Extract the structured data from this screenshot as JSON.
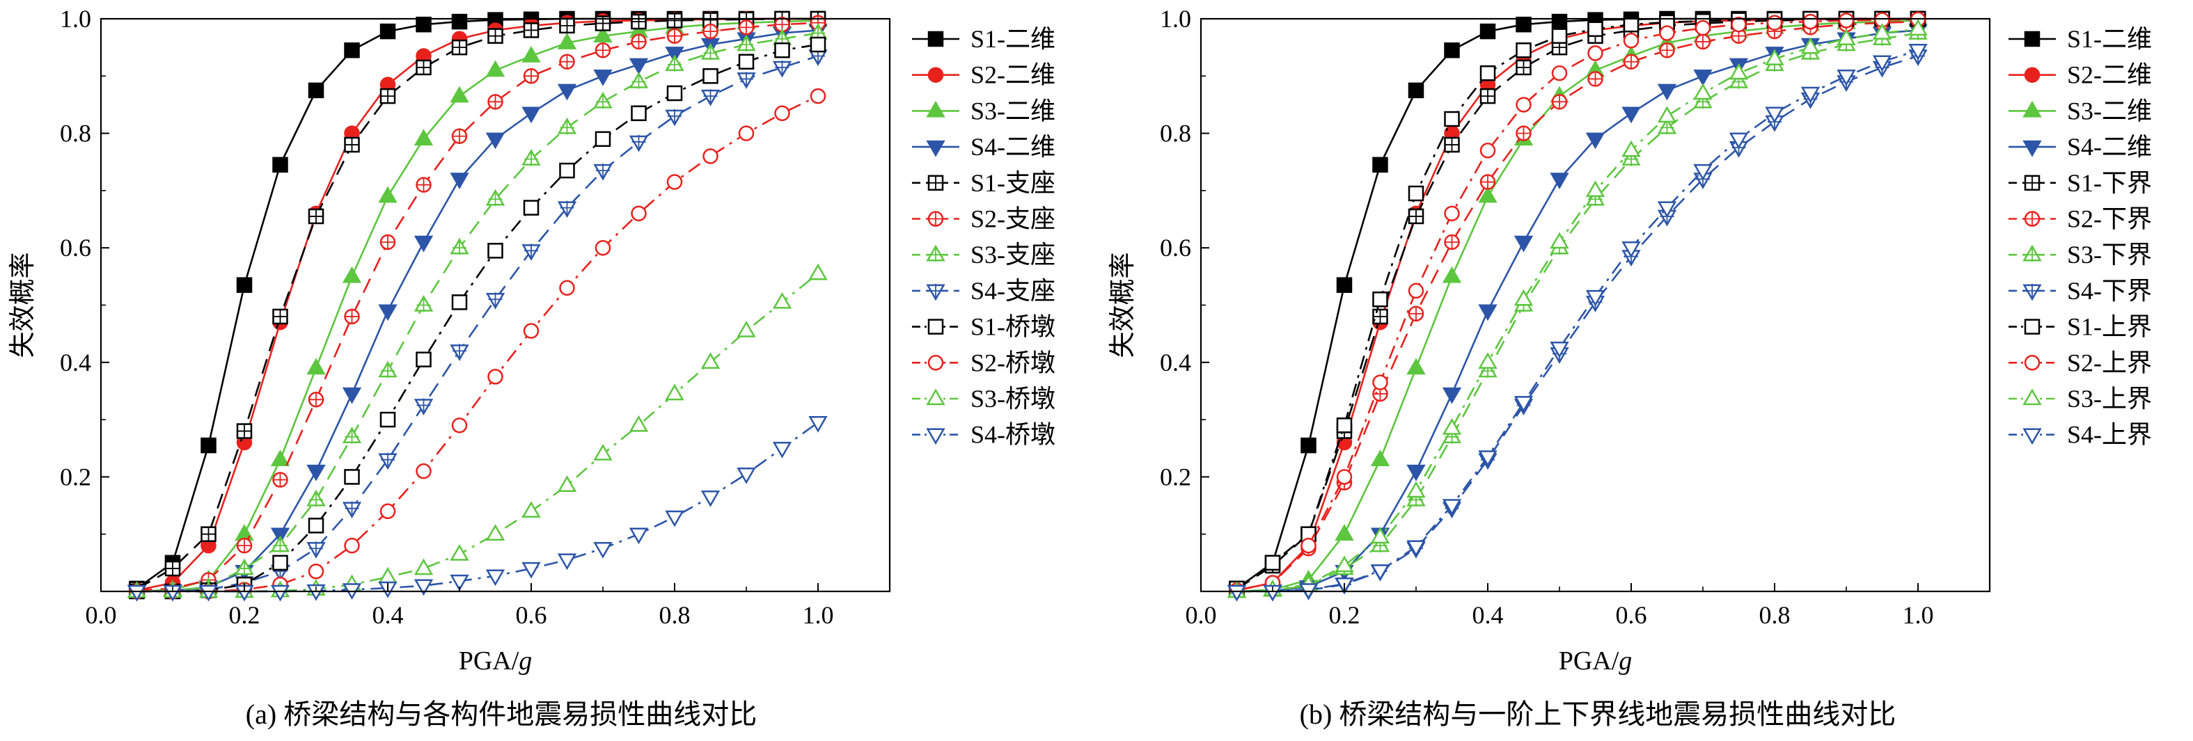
{
  "colors": {
    "S1": "#000000",
    "S2": "#e8211d",
    "S3": "#5cc63e",
    "S4": "#2c55a8"
  },
  "chart_data": [
    {
      "type": "line",
      "caption": "(a) 桥梁结构与各构件地震易损性曲线对比",
      "xlabel": "PGA/g",
      "ylabel": "失效概率",
      "xlim": [
        0,
        1.1
      ],
      "ylim": [
        0,
        1.0
      ],
      "xticks": [
        "0.0",
        "0.2",
        "0.4",
        "0.6",
        "0.8",
        "1.0"
      ],
      "yticks": [
        "0.2",
        "0.4",
        "0.6",
        "0.8",
        "1.0"
      ],
      "grid": false,
      "legend_position": "right-outside",
      "x": [
        0.05,
        0.1,
        0.15,
        0.2,
        0.25,
        0.3,
        0.35,
        0.4,
        0.45,
        0.5,
        0.55,
        0.6,
        0.65,
        0.7,
        0.75,
        0.8,
        0.85,
        0.9,
        0.95,
        1.0
      ],
      "series": [
        {
          "name": "S1-二维",
          "group": "S1",
          "marker": "square-filled",
          "dash": "solid",
          "values": [
            0.005,
            0.05,
            0.255,
            0.535,
            0.745,
            0.875,
            0.945,
            0.978,
            0.99,
            0.995,
            0.998,
            0.999,
            1.0,
            1.0,
            1.0,
            1.0,
            1.0,
            1.0,
            1.0,
            1.0
          ]
        },
        {
          "name": "S2-二维",
          "group": "S2",
          "marker": "circle-filled",
          "dash": "solid",
          "values": [
            0.002,
            0.015,
            0.08,
            0.26,
            0.47,
            0.66,
            0.8,
            0.885,
            0.935,
            0.965,
            0.98,
            0.988,
            0.993,
            0.996,
            0.997,
            0.998,
            0.999,
            1.0,
            1.0,
            1.0
          ]
        },
        {
          "name": "S3-二维",
          "group": "S3",
          "marker": "triangle-filled",
          "dash": "solid",
          "values": [
            0.0,
            0.003,
            0.02,
            0.1,
            0.23,
            0.39,
            0.55,
            0.69,
            0.79,
            0.865,
            0.91,
            0.935,
            0.958,
            0.97,
            0.978,
            0.985,
            0.99,
            0.993,
            0.995,
            0.997
          ]
        },
        {
          "name": "S4-二维",
          "group": "S4",
          "marker": "triangledown-filled",
          "dash": "solid",
          "values": [
            0.0,
            0.001,
            0.008,
            0.035,
            0.1,
            0.21,
            0.345,
            0.49,
            0.61,
            0.72,
            0.79,
            0.835,
            0.875,
            0.9,
            0.92,
            0.94,
            0.955,
            0.965,
            0.975,
            0.98
          ]
        },
        {
          "name": "S1-支座",
          "group": "S1",
          "marker": "square-plus",
          "dash": "dash",
          "values": [
            0.004,
            0.04,
            0.1,
            0.28,
            0.48,
            0.655,
            0.78,
            0.865,
            0.915,
            0.95,
            0.97,
            0.98,
            0.988,
            0.992,
            0.995,
            0.997,
            0.998,
            0.999,
            1.0,
            1.0
          ]
        },
        {
          "name": "S2-支座",
          "group": "S2",
          "marker": "circle-plus",
          "dash": "dash",
          "values": [
            0.002,
            0.005,
            0.02,
            0.08,
            0.195,
            0.335,
            0.48,
            0.61,
            0.71,
            0.795,
            0.855,
            0.9,
            0.925,
            0.945,
            0.96,
            0.97,
            0.978,
            0.985,
            0.99,
            0.993
          ]
        },
        {
          "name": "S3-支座",
          "group": "S3",
          "marker": "triangle-plus",
          "dash": "dash",
          "values": [
            0.0,
            0.002,
            0.007,
            0.04,
            0.08,
            0.16,
            0.27,
            0.385,
            0.5,
            0.6,
            0.685,
            0.755,
            0.81,
            0.855,
            0.89,
            0.92,
            0.94,
            0.955,
            0.965,
            0.975
          ]
        },
        {
          "name": "S4-支座",
          "group": "S4",
          "marker": "triangledown-plus",
          "dash": "dash",
          "values": [
            0.0,
            0.0,
            0.003,
            0.015,
            0.035,
            0.075,
            0.145,
            0.23,
            0.325,
            0.42,
            0.51,
            0.595,
            0.67,
            0.735,
            0.785,
            0.83,
            0.865,
            0.895,
            0.915,
            0.935
          ]
        },
        {
          "name": "S1-桥墩",
          "group": "S1",
          "marker": "square-open",
          "dash": "dashdot",
          "values": [
            0.0,
            0.0,
            0.002,
            0.012,
            0.05,
            0.115,
            0.2,
            0.3,
            0.405,
            0.505,
            0.595,
            0.67,
            0.735,
            0.79,
            0.835,
            0.87,
            0.9,
            0.925,
            0.945,
            0.955
          ]
        },
        {
          "name": "S2-桥墩",
          "group": "S2",
          "marker": "circle-open",
          "dash": "dashdot",
          "values": [
            0.0,
            0.0,
            0.0,
            0.003,
            0.012,
            0.035,
            0.08,
            0.14,
            0.21,
            0.29,
            0.375,
            0.455,
            0.53,
            0.6,
            0.66,
            0.715,
            0.76,
            0.8,
            0.835,
            0.865
          ]
        },
        {
          "name": "S3-桥墩",
          "group": "S3",
          "marker": "triangle-open",
          "dash": "dashdot",
          "values": [
            0.0,
            0.0,
            0.0,
            0.0,
            0.001,
            0.004,
            0.012,
            0.025,
            0.04,
            0.065,
            0.1,
            0.14,
            0.185,
            0.24,
            0.29,
            0.345,
            0.4,
            0.455,
            0.505,
            0.555
          ]
        },
        {
          "name": "S4-桥墩",
          "group": "S4",
          "marker": "triangledown-open",
          "dash": "dashdot",
          "values": [
            0.0,
            0.0,
            0.0,
            0.0,
            0.0,
            0.001,
            0.003,
            0.006,
            0.01,
            0.018,
            0.027,
            0.04,
            0.055,
            0.075,
            0.1,
            0.13,
            0.165,
            0.205,
            0.25,
            0.295
          ]
        }
      ]
    },
    {
      "type": "line",
      "caption": "(b) 桥梁结构与一阶上下界线地震易损性曲线对比",
      "xlabel": "PGA/g",
      "ylabel": "失效概率",
      "xlim": [
        0,
        1.1
      ],
      "ylim": [
        0,
        1.0
      ],
      "xticks": [
        "0.0",
        "0.2",
        "0.4",
        "0.6",
        "0.8",
        "1.0"
      ],
      "yticks": [
        "0.2",
        "0.4",
        "0.6",
        "0.8",
        "1.0"
      ],
      "grid": false,
      "legend_position": "right-outside",
      "x": [
        0.05,
        0.1,
        0.15,
        0.2,
        0.25,
        0.3,
        0.35,
        0.4,
        0.45,
        0.5,
        0.55,
        0.6,
        0.65,
        0.7,
        0.75,
        0.8,
        0.85,
        0.9,
        0.95,
        1.0
      ],
      "series": [
        {
          "name": "S1-二维",
          "group": "S1",
          "marker": "square-filled",
          "dash": "solid",
          "values": [
            0.005,
            0.05,
            0.255,
            0.535,
            0.745,
            0.875,
            0.945,
            0.978,
            0.99,
            0.995,
            0.998,
            0.999,
            1.0,
            1.0,
            1.0,
            1.0,
            1.0,
            1.0,
            1.0,
            1.0
          ]
        },
        {
          "name": "S2-二维",
          "group": "S2",
          "marker": "circle-filled",
          "dash": "solid",
          "values": [
            0.002,
            0.015,
            0.08,
            0.26,
            0.47,
            0.66,
            0.8,
            0.885,
            0.935,
            0.965,
            0.98,
            0.988,
            0.993,
            0.996,
            0.997,
            0.998,
            0.999,
            1.0,
            1.0,
            1.0
          ]
        },
        {
          "name": "S3-二维",
          "group": "S3",
          "marker": "triangle-filled",
          "dash": "solid",
          "values": [
            0.0,
            0.003,
            0.02,
            0.1,
            0.23,
            0.39,
            0.55,
            0.69,
            0.79,
            0.865,
            0.91,
            0.935,
            0.958,
            0.97,
            0.978,
            0.985,
            0.99,
            0.993,
            0.995,
            0.997
          ]
        },
        {
          "name": "S4-二维",
          "group": "S4",
          "marker": "triangledown-filled",
          "dash": "solid",
          "values": [
            0.0,
            0.001,
            0.008,
            0.035,
            0.1,
            0.21,
            0.345,
            0.49,
            0.61,
            0.72,
            0.79,
            0.835,
            0.875,
            0.9,
            0.92,
            0.94,
            0.955,
            0.965,
            0.975,
            0.98
          ]
        },
        {
          "name": "S1-下界",
          "group": "S1",
          "marker": "square-plus",
          "dash": "dash",
          "values": [
            0.004,
            0.045,
            0.1,
            0.28,
            0.48,
            0.655,
            0.78,
            0.865,
            0.915,
            0.95,
            0.97,
            0.98,
            0.988,
            0.992,
            0.995,
            0.997,
            0.998,
            0.999,
            1.0,
            1.0
          ]
        },
        {
          "name": "S2-下界",
          "group": "S2",
          "marker": "circle-plus",
          "dash": "dash",
          "values": [
            0.002,
            0.015,
            0.075,
            0.19,
            0.345,
            0.485,
            0.61,
            0.715,
            0.8,
            0.855,
            0.895,
            0.925,
            0.945,
            0.96,
            0.97,
            0.978,
            0.985,
            0.99,
            0.993,
            0.995
          ]
        },
        {
          "name": "S3-下界",
          "group": "S3",
          "marker": "triangle-plus",
          "dash": "dash",
          "values": [
            0.0,
            0.002,
            0.01,
            0.04,
            0.08,
            0.16,
            0.27,
            0.385,
            0.5,
            0.6,
            0.685,
            0.755,
            0.81,
            0.855,
            0.89,
            0.92,
            0.94,
            0.955,
            0.965,
            0.975
          ]
        },
        {
          "name": "S4-下界",
          "group": "S4",
          "marker": "triangledown-plus",
          "dash": "dash",
          "values": [
            0.0,
            0.0,
            0.002,
            0.012,
            0.035,
            0.075,
            0.145,
            0.23,
            0.325,
            0.415,
            0.505,
            0.585,
            0.655,
            0.72,
            0.775,
            0.82,
            0.86,
            0.89,
            0.915,
            0.935
          ]
        },
        {
          "name": "S1-上界",
          "group": "S1",
          "marker": "square-open",
          "dash": "dashdot",
          "values": [
            0.005,
            0.05,
            0.1,
            0.29,
            0.51,
            0.695,
            0.825,
            0.905,
            0.945,
            0.97,
            0.982,
            0.99,
            0.994,
            0.996,
            0.998,
            0.999,
            1.0,
            1.0,
            1.0,
            1.0
          ]
        },
        {
          "name": "S2-上界",
          "group": "S2",
          "marker": "circle-open",
          "dash": "dashdot",
          "values": [
            0.002,
            0.015,
            0.08,
            0.2,
            0.365,
            0.525,
            0.66,
            0.77,
            0.85,
            0.905,
            0.94,
            0.962,
            0.975,
            0.984,
            0.99,
            0.993,
            0.995,
            0.997,
            0.998,
            0.999
          ]
        },
        {
          "name": "S3-上界",
          "group": "S3",
          "marker": "triangle-open",
          "dash": "dashdot",
          "values": [
            0.0,
            0.003,
            0.012,
            0.045,
            0.095,
            0.175,
            0.285,
            0.4,
            0.51,
            0.61,
            0.7,
            0.77,
            0.83,
            0.87,
            0.905,
            0.93,
            0.95,
            0.965,
            0.975,
            0.982
          ]
        },
        {
          "name": "S4-上界",
          "group": "S4",
          "marker": "triangledown-open",
          "dash": "dashdot",
          "values": [
            0.0,
            0.0,
            0.003,
            0.013,
            0.036,
            0.078,
            0.15,
            0.235,
            0.33,
            0.425,
            0.515,
            0.6,
            0.67,
            0.735,
            0.79,
            0.835,
            0.87,
            0.9,
            0.925,
            0.945
          ]
        }
      ]
    }
  ]
}
